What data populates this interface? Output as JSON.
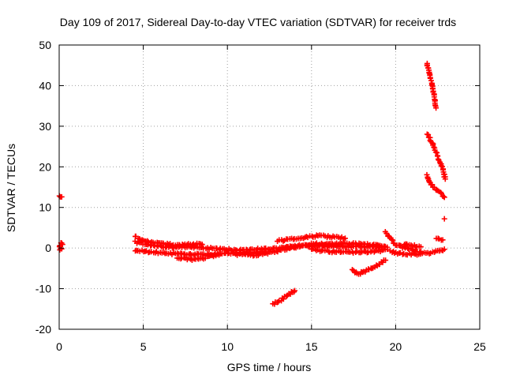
{
  "chart_data": {
    "type": "scatter",
    "title": "Day 109 of 2017, Sidereal Day-to-day VTEC variation (SDTVAR) for receiver trds",
    "xlabel": "GPS time / hours",
    "ylabel": "SDTVAR / TECUs",
    "xlim": [
      0,
      25
    ],
    "ylim": [
      -20,
      50
    ],
    "xticks": [
      0,
      5,
      10,
      15,
      20,
      25
    ],
    "xtick_labels": [
      "0",
      "5",
      "10",
      "15",
      "20",
      "25"
    ],
    "yticks": [
      -20,
      -10,
      0,
      10,
      20,
      30,
      40,
      50
    ],
    "ytick_labels": [
      "-20",
      "-10",
      "0",
      "10",
      "20",
      "30",
      "40",
      "50"
    ],
    "grid": true,
    "marker": "+",
    "colors": {
      "series": "#ff0000",
      "axis": "#000000",
      "grid": "#a0a0a0"
    },
    "series": [
      {
        "name": "SDTVAR",
        "segments": [
          {
            "x": [
              0.0,
              0.15
            ],
            "y": [
              12.8,
              12.6
            ]
          },
          {
            "x": [
              0.0,
              0.1,
              0.2
            ],
            "y": [
              0.2,
              1.2,
              0.9
            ]
          },
          {
            "x": [
              0.05,
              0.15
            ],
            "y": [
              -0.4,
              -0.2
            ]
          },
          {
            "x": [
              4.5,
              5.5,
              6.5,
              7.5,
              8.5,
              9.5,
              10.5,
              11.5,
              12.5,
              13.5,
              14.5,
              15.5,
              16.5,
              17.5,
              18.5,
              19.5
            ],
            "y": [
              1.5,
              0.6,
              0.2,
              0.3,
              0.1,
              -0.3,
              -0.4,
              -0.3,
              -0.2,
              0.1,
              0.4,
              0.6,
              0.5,
              0.4,
              0.3,
              0.2
            ]
          },
          {
            "x": [
              4.5,
              5.5,
              6.5,
              7.5,
              8.5,
              9.5,
              10.5,
              11.5,
              12.5
            ],
            "y": [
              -0.5,
              -1.0,
              -1.3,
              -1.6,
              -1.6,
              -1.5,
              -1.3,
              -1.2,
              -1.0
            ]
          },
          {
            "x": [
              4.5,
              5.0,
              5.5,
              6.5,
              7.5,
              8.0,
              8.5
            ],
            "y": [
              2.8,
              2.0,
              1.3,
              0.9,
              0.8,
              0.9,
              0.9
            ]
          },
          {
            "x": [
              7.0,
              7.5,
              8.0,
              8.5,
              9.0,
              9.5
            ],
            "y": [
              -2.3,
              -2.6,
              -2.8,
              -2.5,
              -2.1,
              -1.6
            ]
          },
          {
            "x": [
              10.5,
              11.0,
              11.5,
              12.0,
              12.5,
              13.0,
              13.5,
              14.0
            ],
            "y": [
              -1.5,
              -1.6,
              -1.7,
              -1.5,
              -1.1,
              -0.7,
              -0.2,
              0.3
            ]
          },
          {
            "x": [
              13.0,
              13.5,
              14.0,
              14.5,
              15.0,
              15.5,
              16.0,
              16.5,
              17.0
            ],
            "y": [
              1.8,
              2.0,
              2.2,
              2.5,
              2.9,
              3.0,
              2.8,
              2.6,
              2.4
            ]
          },
          {
            "x": [
              13.5,
              14.0,
              14.5,
              15.0,
              15.5,
              16.0,
              16.5
            ],
            "y": [
              0.2,
              0.5,
              0.8,
              1.0,
              1.0,
              0.9,
              0.8
            ]
          },
          {
            "x": [
              15.0,
              16.0,
              17.0,
              18.0,
              19.0,
              19.5
            ],
            "y": [
              -0.4,
              -0.8,
              -1.0,
              -1.0,
              -0.7,
              -0.3
            ]
          },
          {
            "x": [
              15.5,
              16.5,
              17.5,
              18.5,
              19.3
            ],
            "y": [
              0.7,
              1.2,
              1.1,
              0.8,
              0.4
            ]
          },
          {
            "x": [
              17.4,
              17.8,
              18.2,
              18.6,
              19.0,
              19.4
            ],
            "y": [
              -5.5,
              -6.3,
              -5.6,
              -4.8,
              -4.0,
              -3.0
            ]
          },
          {
            "x": [
              12.7,
              13.1,
              13.5,
              13.8,
              14.0
            ],
            "y": [
              -13.8,
              -13.0,
              -11.9,
              -11.0,
              -10.5
            ]
          },
          {
            "x": [
              19.4,
              19.7,
              20.0,
              20.5,
              21.0,
              21.5
            ],
            "y": [
              3.8,
              2.4,
              0.8,
              0.1,
              -0.4,
              -0.9
            ]
          },
          {
            "x": [
              19.7,
              20.0,
              20.5,
              21.0,
              21.5,
              22.0,
              22.5,
              22.9
            ],
            "y": [
              -0.8,
              -1.2,
              -1.5,
              -1.5,
              -1.4,
              -1.2,
              -0.8,
              -0.3
            ]
          },
          {
            "x": [
              20.5,
              21.0,
              21.5
            ],
            "y": [
              0.9,
              0.6,
              0.3
            ]
          },
          {
            "x": [
              22.4,
              22.6,
              22.8
            ],
            "y": [
              2.3,
              2.1,
              2.0
            ]
          },
          {
            "x": [
              22.9
            ],
            "y": [
              7.2
            ]
          },
          {
            "x": [
              21.85,
              22.0,
              22.3,
              22.6,
              22.9
            ],
            "y": [
              18.0,
              16.3,
              14.8,
              13.8,
              12.5
            ]
          },
          {
            "x": [
              21.9,
              22.2,
              22.5,
              22.8,
              22.95
            ],
            "y": [
              28.2,
              25.6,
              22.5,
              19.5,
              17.0
            ]
          },
          {
            "x": [
              21.85,
              22.0,
              22.15,
              22.3,
              22.4
            ],
            "y": [
              45.5,
              43.0,
              40.5,
              37.5,
              34.5
            ]
          }
        ]
      }
    ]
  }
}
